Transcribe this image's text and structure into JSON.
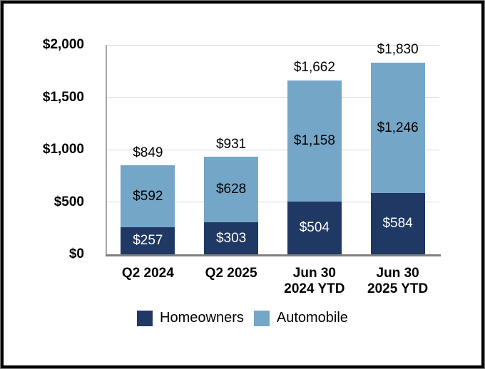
{
  "chart_data": {
    "type": "bar",
    "stacked": true,
    "title": "",
    "xlabel": "",
    "ylabel": "",
    "grid": true,
    "legend_position": "bottom",
    "categories": [
      "Q2 2024",
      "Q2 2025",
      "Jun 30 2024 YTD",
      "Jun 30 2025 YTD"
    ],
    "category_lines": [
      [
        "Q2 2024"
      ],
      [
        "Q2 2025"
      ],
      [
        "Jun 30",
        "2024 YTD"
      ],
      [
        "Jun 30",
        "2025 YTD"
      ]
    ],
    "series": [
      {
        "name": "Homeowners",
        "color": "#1F3864",
        "label_color": "#FFFFFF",
        "values": [
          257,
          303,
          504,
          584
        ],
        "labels": [
          "$257",
          "$303",
          "$504",
          "$584"
        ]
      },
      {
        "name": "Automobile",
        "color": "#74A6C8",
        "label_color": "#000000",
        "values": [
          592,
          628,
          1158,
          1246
        ],
        "labels": [
          "$592",
          "$628",
          "$1,158",
          "$1,246"
        ]
      }
    ],
    "totals": [
      849,
      931,
      1662,
      1830
    ],
    "total_labels": [
      "$849",
      "$931",
      "$1,662",
      "$1,830"
    ],
    "ylim": [
      0,
      2000
    ],
    "yticks": [
      {
        "value": 0,
        "label": "$0"
      },
      {
        "value": 500,
        "label": "$500"
      },
      {
        "value": 1000,
        "label": "$1,000"
      },
      {
        "value": 1500,
        "label": "$1,500"
      },
      {
        "value": 2000,
        "label": "$2,000"
      }
    ],
    "colors": {
      "gridline": "#D9D9D9",
      "axis_line": "#7F7F7F",
      "plot_border": "#A6A6A6",
      "text": "#000000",
      "frame": "#000000"
    }
  }
}
